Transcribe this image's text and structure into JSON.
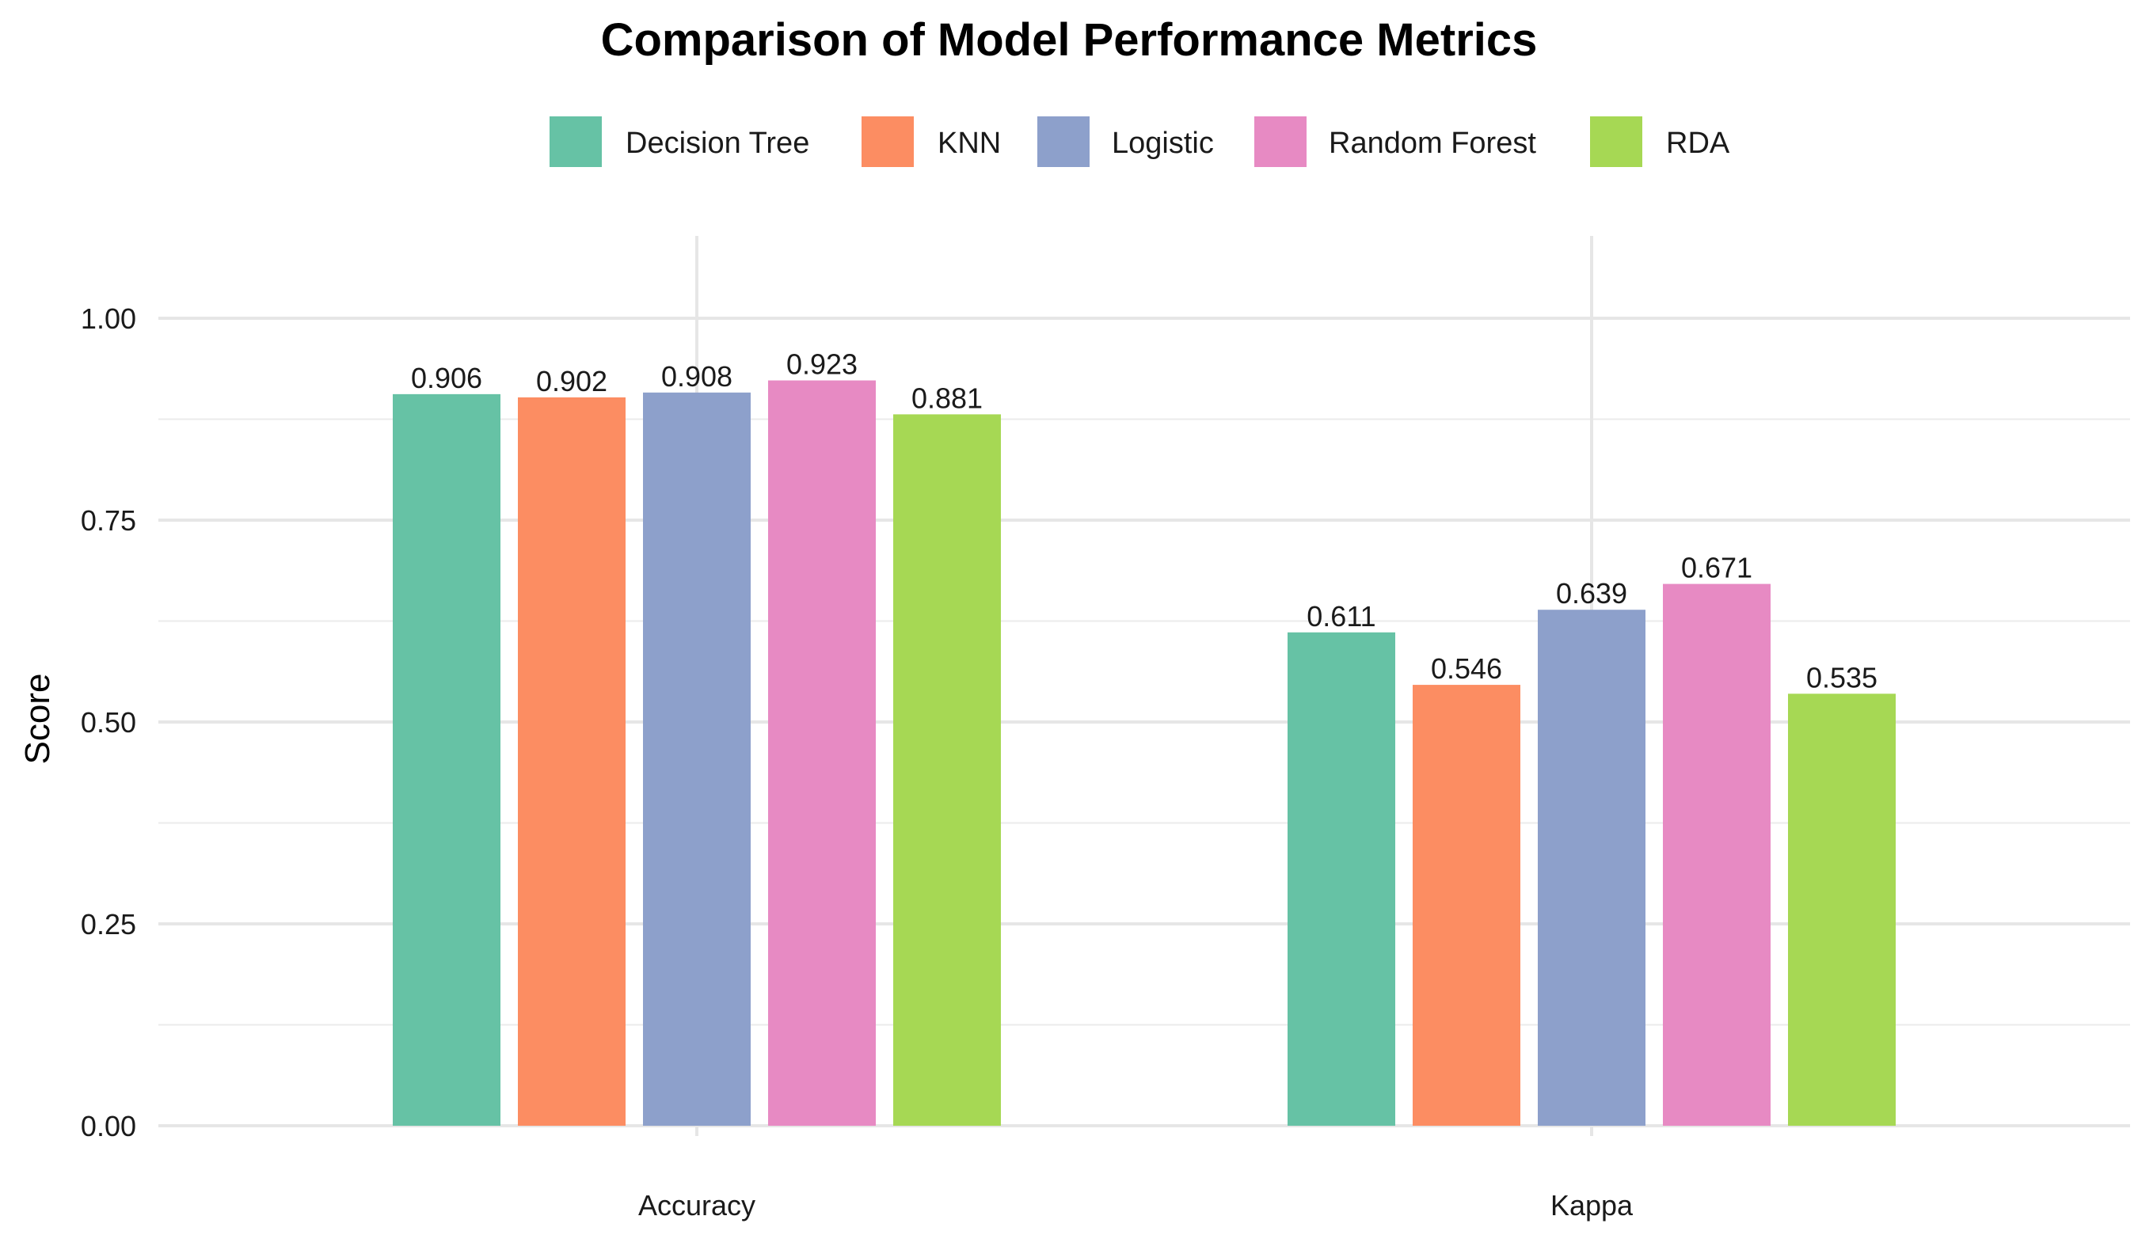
{
  "chart_data": {
    "type": "bar",
    "title": "Comparison of Model Performance Metrics",
    "xlabel": "",
    "ylabel": "Score",
    "ylim": [
      0,
      1.1
    ],
    "yticks": [
      0.0,
      0.25,
      0.5,
      0.75,
      1.0
    ],
    "ytick_labels": [
      "0.00",
      "0.25",
      "0.50",
      "0.75",
      "1.00"
    ],
    "categories": [
      "Accuracy",
      "Kappa"
    ],
    "series": [
      {
        "name": "Decision Tree",
        "color": "#66c2a5",
        "values": [
          0.906,
          0.611
        ],
        "labels": [
          "0.906",
          "0.611"
        ]
      },
      {
        "name": "KNN",
        "color": "#fc8d62",
        "values": [
          0.902,
          0.546
        ],
        "labels": [
          "0.902",
          "0.546"
        ]
      },
      {
        "name": "Logistic",
        "color": "#8da0cb",
        "values": [
          0.908,
          0.639
        ],
        "labels": [
          "0.908",
          "0.639"
        ]
      },
      {
        "name": "Random Forest",
        "color": "#e78ac3",
        "values": [
          0.923,
          0.671
        ],
        "labels": [
          "0.923",
          "0.671"
        ]
      },
      {
        "name": "RDA",
        "color": "#a6d854",
        "values": [
          0.881,
          0.535
        ],
        "labels": [
          "0.881",
          "0.535"
        ]
      }
    ],
    "legend_position": "top",
    "grid": true
  }
}
